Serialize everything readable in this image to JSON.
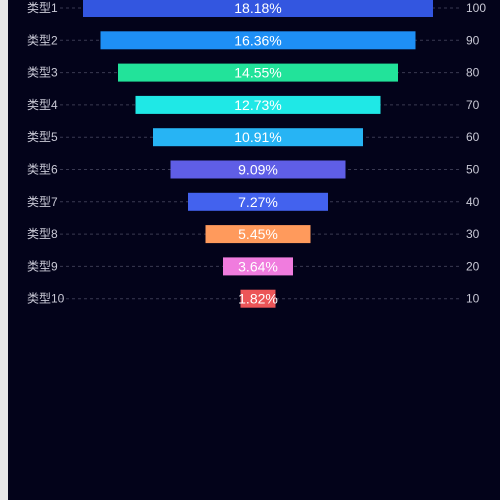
{
  "chart_data": {
    "type": "bar",
    "categories": [
      "类型1",
      "类型2",
      "类型3",
      "类型4",
      "类型5",
      "类型6",
      "类型7",
      "类型8",
      "类型9",
      "类型10"
    ],
    "values": [
      100,
      90,
      80,
      70,
      60,
      50,
      40,
      30,
      20,
      10
    ],
    "percent_labels": [
      "18.18%",
      "16.36%",
      "14.55%",
      "12.73%",
      "10.91%",
      "9.09%",
      "7.27%",
      "5.45%",
      "3.64%",
      "1.82%"
    ],
    "colors": [
      "#3356e0",
      "#1e8ff5",
      "#22e39a",
      "#1fe8e6",
      "#27b4f4",
      "#5f5ee6",
      "#4362ee",
      "#ff9a5c",
      "#f07cde",
      "#ec5558"
    ],
    "grid": true,
    "grid_style": "dashed",
    "title": "",
    "xlabel": "",
    "ylabel": ""
  }
}
